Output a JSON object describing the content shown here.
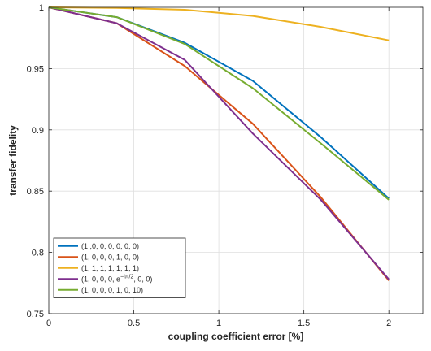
{
  "chart_data": {
    "type": "line",
    "xlabel": "coupling coefficient error [%]",
    "ylabel": "transfer fidelity",
    "xlim": [
      0,
      2.2
    ],
    "ylim": [
      0.75,
      1
    ],
    "xticks": [
      0,
      0.5,
      1,
      1.5,
      2
    ],
    "yticks": [
      0.75,
      0.8,
      0.85,
      0.9,
      0.95,
      1
    ],
    "xtick_labels": [
      "0",
      "0.5",
      "1",
      "1.5",
      "2"
    ],
    "ytick_labels": [
      "0.75",
      "0.8",
      "0.85",
      "0.9",
      "0.95",
      "1"
    ],
    "grid": true,
    "legend_position": "bottom-left",
    "series": [
      {
        "name": "(1 ,0, 0, 0, 0, 0, 0)",
        "color": "#0072BD",
        "x": [
          0,
          0.4,
          0.8,
          1.2,
          1.6,
          2.0
        ],
        "y": [
          1.0,
          0.992,
          0.971,
          0.94,
          0.894,
          0.844
        ]
      },
      {
        "name": "(1, 0, 0, 0, 1, 0, 0)",
        "color": "#D95319",
        "x": [
          0,
          0.4,
          0.8,
          1.2,
          1.6,
          2.0
        ],
        "y": [
          1.0,
          0.987,
          0.952,
          0.905,
          0.845,
          0.777
        ]
      },
      {
        "name": "(1, 1, 1, 1, 1, 1, 1)",
        "color": "#EDB120",
        "x": [
          0,
          0.4,
          0.8,
          1.2,
          1.6,
          2.0
        ],
        "y": [
          1.0,
          0.9995,
          0.998,
          0.993,
          0.984,
          0.973
        ]
      },
      {
        "name_prefix": "(1, 0, 0, 0, e",
        "name_sup": "−iπ/2",
        "name_suffix": ", 0, 0)",
        "color": "#7E2F8E",
        "x": [
          0,
          0.4,
          0.8,
          1.2,
          1.6,
          2.0
        ],
        "y": [
          1.0,
          0.987,
          0.957,
          0.897,
          0.843,
          0.778
        ]
      },
      {
        "name": "(1, 0, 0, 0, 1, 0, 10)",
        "color": "#77AC30",
        "x": [
          0,
          0.4,
          0.8,
          1.2,
          1.6,
          2.0
        ],
        "y": [
          1.0,
          0.992,
          0.97,
          0.934,
          0.889,
          0.843
        ]
      }
    ]
  }
}
